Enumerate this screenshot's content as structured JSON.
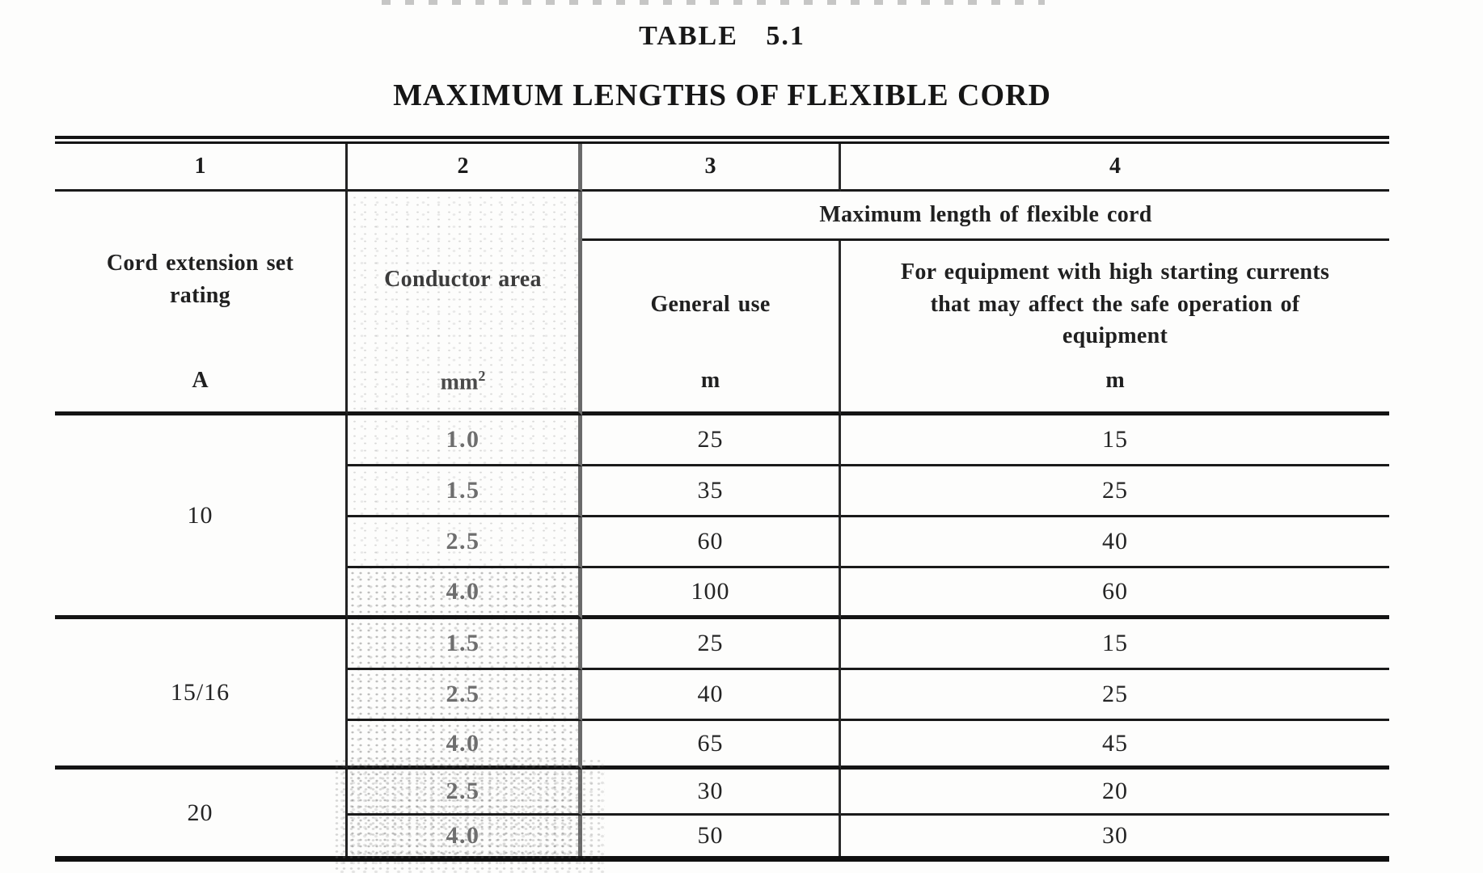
{
  "page": {
    "title": "TABLE 5.1",
    "subtitle": "MAXIMUM LENGTHS OF FLEXIBLE CORD"
  },
  "table": {
    "column_numbers": [
      "1",
      "2",
      "3",
      "4"
    ],
    "headers": {
      "col1_label": "Cord extension set rating",
      "col1_unit": "A",
      "col2_label": "Conductor area",
      "col2_unit_base": "mm",
      "col2_unit_exponent": "2",
      "span_label": "Maximum length of flexible cord",
      "col3_label": "General use",
      "col3_unit": "m",
      "col4_label": "For equipment with high starting currents that may affect the safe operation of equipment",
      "col4_unit": "m"
    },
    "groups": [
      {
        "rating": "10",
        "rows": [
          {
            "area": "1.0",
            "general_use": "25",
            "high_starting": "15"
          },
          {
            "area": "1.5",
            "general_use": "35",
            "high_starting": "25"
          },
          {
            "area": "2.5",
            "general_use": "60",
            "high_starting": "40"
          },
          {
            "area": "4.0",
            "general_use": "100",
            "high_starting": "60"
          }
        ]
      },
      {
        "rating": "15/16",
        "rows": [
          {
            "area": "1.5",
            "general_use": "25",
            "high_starting": "15"
          },
          {
            "area": "2.5",
            "general_use": "40",
            "high_starting": "25"
          },
          {
            "area": "4.0",
            "general_use": "65",
            "high_starting": "45"
          }
        ]
      },
      {
        "rating": "20",
        "rows": [
          {
            "area": "2.5",
            "general_use": "30",
            "high_starting": "20"
          },
          {
            "area": "4.0",
            "general_use": "50",
            "high_starting": "30"
          }
        ]
      }
    ]
  }
}
